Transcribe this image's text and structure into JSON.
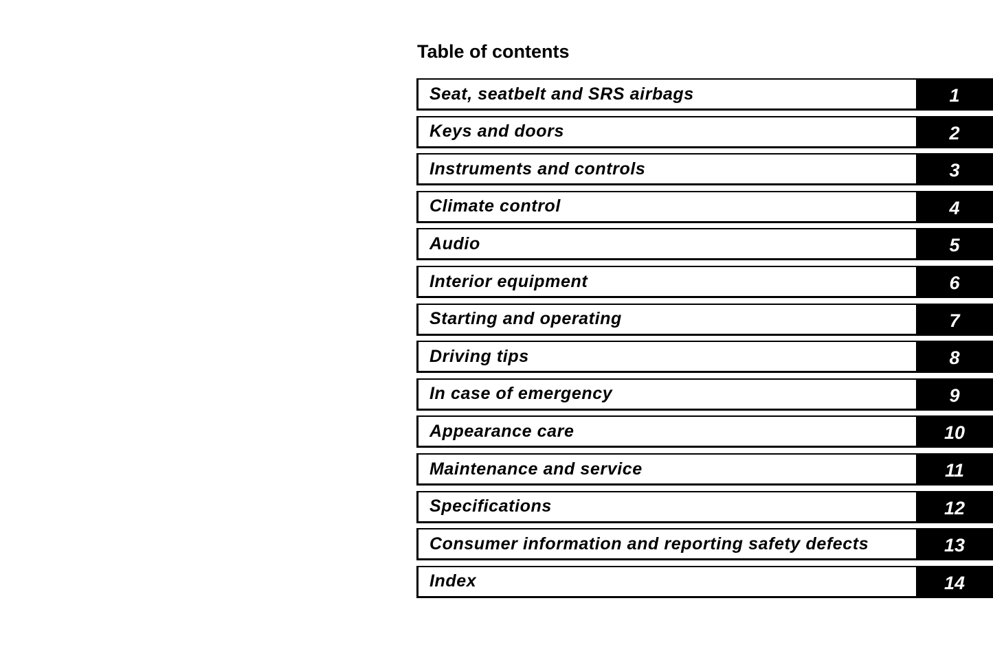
{
  "title": "Table of contents",
  "items": [
    {
      "label": "Seat, seatbelt and SRS airbags",
      "number": "1"
    },
    {
      "label": "Keys and doors",
      "number": "2"
    },
    {
      "label": "Instruments and controls",
      "number": "3"
    },
    {
      "label": "Climate control",
      "number": "4"
    },
    {
      "label": "Audio",
      "number": "5"
    },
    {
      "label": "Interior equipment",
      "number": "6"
    },
    {
      "label": "Starting and operating",
      "number": "7"
    },
    {
      "label": "Driving tips",
      "number": "8"
    },
    {
      "label": "In case of emergency",
      "number": "9"
    },
    {
      "label": "Appearance care",
      "number": "10"
    },
    {
      "label": "Maintenance and service",
      "number": "11"
    },
    {
      "label": "Specifications",
      "number": "12"
    },
    {
      "label": "Consumer information and reporting safety defects",
      "number": "13"
    },
    {
      "label": "Index",
      "number": "14"
    }
  ]
}
